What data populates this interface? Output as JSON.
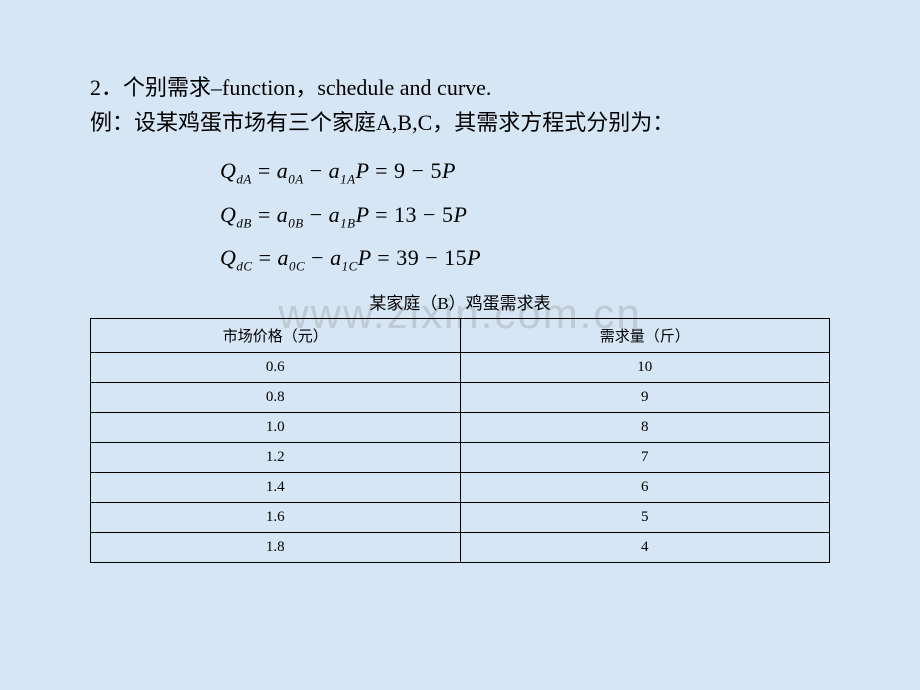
{
  "heading1": "2．个别需求–function，schedule and curve.",
  "heading2": "例：设某鸡蛋市场有三个家庭A,B,C，其需求方程式分别为：",
  "equations": {
    "eqA": "QdA = a0A − a1A P = 9 − 5P",
    "eqB": "QdB = a0B − a1B P = 13 − 5P",
    "eqC": "QdC = a0C − a1C P = 39 − 15P"
  },
  "watermark": "www.zixin.com.cn",
  "table": {
    "title": "某家庭（B）鸡蛋需求表",
    "columns": [
      "市场价格（元）",
      "需求量（斤）"
    ],
    "rows": [
      [
        "0.6",
        "10"
      ],
      [
        "0.8",
        "9"
      ],
      [
        "1.0",
        "8"
      ],
      [
        "1.2",
        "7"
      ],
      [
        "1.4",
        "6"
      ],
      [
        "1.6",
        "5"
      ],
      [
        "1.8",
        "4"
      ]
    ],
    "border_color": "#000000",
    "background_color": "transparent",
    "header_fontsize": 15,
    "cell_fontsize": 15,
    "cell_padding": "6px",
    "text_align": "center"
  },
  "style": {
    "background_color": "#d6e6f5",
    "text_color": "#000000",
    "body_fontsize": 22,
    "eq_fontsize": 22,
    "title_fontsize": 17,
    "watermark_color": "rgba(150,150,150,0.35)",
    "watermark_fontsize": 42
  }
}
